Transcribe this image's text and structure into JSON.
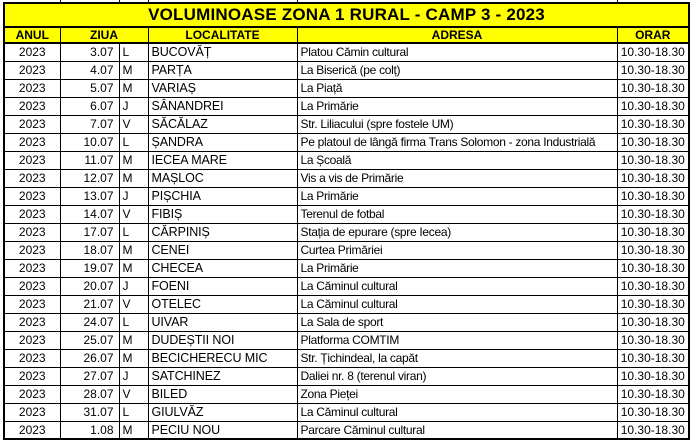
{
  "title": "VOLUMINOASE ZONA 1 RURAL - CAMP 3 - 2023",
  "columns": {
    "anul": "ANUL",
    "ziua": "ZIUA",
    "localitate": "LOCALITATE",
    "adresa": "ADRESA",
    "orar": "ORAR"
  },
  "colors": {
    "header_bg": "#FFFF00",
    "border": "#000000",
    "text": "#000000",
    "row_bg": "#FFFFFF"
  },
  "rows": [
    {
      "anul": "2023",
      "ziua": "3.07",
      "zi": "L",
      "localitate": "BUCOVĂȚ",
      "adresa": "Platou Cămin cultural",
      "orar": "10.30-18.30"
    },
    {
      "anul": "2023",
      "ziua": "4.07",
      "zi": "M",
      "localitate": "PARȚA",
      "adresa": "La Biserică (pe colț)",
      "orar": "10.30-18.30"
    },
    {
      "anul": "2023",
      "ziua": "5.07",
      "zi": "M",
      "localitate": "VARIAȘ",
      "adresa": "La Piață",
      "orar": "10.30-18.30"
    },
    {
      "anul": "2023",
      "ziua": "6.07",
      "zi": "J",
      "localitate": "SÂNANDREI",
      "adresa": "La Primărie",
      "orar": "10.30-18.30"
    },
    {
      "anul": "2023",
      "ziua": "7.07",
      "zi": "V",
      "localitate": "SĂCĂLAZ",
      "adresa": "Str. Liliacului (spre fostele UM)",
      "orar": "10.30-18.30"
    },
    {
      "anul": "2023",
      "ziua": "10.07",
      "zi": "L",
      "localitate": "ȘANDRA",
      "adresa": "Pe platoul de lângă firma Trans Solomon - zona Industrială",
      "orar": "10.30-18.30"
    },
    {
      "anul": "2023",
      "ziua": "11.07",
      "zi": "M",
      "localitate": "IECEA MARE",
      "adresa": "La Școală",
      "orar": "10.30-18.30"
    },
    {
      "anul": "2023",
      "ziua": "12.07",
      "zi": "M",
      "localitate": "MAȘLOC",
      "adresa": "Vis a vis de Primărie",
      "orar": "10.30-18.30"
    },
    {
      "anul": "2023",
      "ziua": "13.07",
      "zi": "J",
      "localitate": "PIȘCHIA",
      "adresa": "La Primărie",
      "orar": "10.30-18.30"
    },
    {
      "anul": "2023",
      "ziua": "14.07",
      "zi": "V",
      "localitate": "FIBIȘ",
      "adresa": "Terenul de fotbal",
      "orar": "10.30-18.30"
    },
    {
      "anul": "2023",
      "ziua": "17.07",
      "zi": "L",
      "localitate": "CĂRPINIȘ",
      "adresa": "Stația de epurare (spre Iecea)",
      "orar": "10.30-18.30"
    },
    {
      "anul": "2023",
      "ziua": "18.07",
      "zi": "M",
      "localitate": "CENEI",
      "adresa": "Curtea Primăriei",
      "orar": "10.30-18.30"
    },
    {
      "anul": "2023",
      "ziua": "19.07",
      "zi": "M",
      "localitate": "CHECEA",
      "adresa": "La Primărie",
      "orar": "10.30-18.30"
    },
    {
      "anul": "2023",
      "ziua": "20.07",
      "zi": "J",
      "localitate": "FOENI",
      "adresa": "La Căminul cultural",
      "orar": "10.30-18.30"
    },
    {
      "anul": "2023",
      "ziua": "21.07",
      "zi": "V",
      "localitate": "OTELEC",
      "adresa": "La Căminul cultural",
      "orar": "10.30-18.30"
    },
    {
      "anul": "2023",
      "ziua": "24.07",
      "zi": "L",
      "localitate": "UIVAR",
      "adresa": "La Sala de sport",
      "orar": "10.30-18.30"
    },
    {
      "anul": "2023",
      "ziua": "25.07",
      "zi": "M",
      "localitate": "DUDEȘTII NOI",
      "adresa": "Platforma COMTIM",
      "orar": "10.30-18.30"
    },
    {
      "anul": "2023",
      "ziua": "26.07",
      "zi": "M",
      "localitate": "BECICHERECU MIC",
      "adresa": "Str. Țichindeal, la capăt",
      "orar": "10.30-18.30"
    },
    {
      "anul": "2023",
      "ziua": "27.07",
      "zi": "J",
      "localitate": "SATCHINEZ",
      "adresa": "Daliei nr. 8 (terenul viran)",
      "orar": "10.30-18.30"
    },
    {
      "anul": "2023",
      "ziua": "28.07",
      "zi": "V",
      "localitate": "BILED",
      "adresa": "Zona Pieței",
      "orar": "10.30-18.30"
    },
    {
      "anul": "2023",
      "ziua": "31.07",
      "zi": "L",
      "localitate": "GIULVĂZ",
      "adresa": "La Căminul cultural",
      "orar": "10.30-18.30"
    },
    {
      "anul": "2023",
      "ziua": "1.08",
      "zi": "M",
      "localitate": "PECIU NOU",
      "adresa": "Parcare Căminul cultural",
      "orar": "10.30-18.30"
    }
  ]
}
